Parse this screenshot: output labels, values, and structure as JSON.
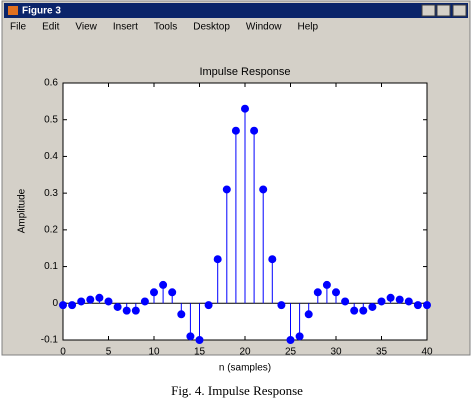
{
  "window": {
    "title": "Figure 3",
    "menu": [
      "File",
      "Edit",
      "View",
      "Insert",
      "Tools",
      "Desktop",
      "Window",
      "Help"
    ]
  },
  "chart_data": {
    "type": "stem",
    "title": "Impulse Response",
    "x_label": "n (samples)",
    "y_label": "Amplitude",
    "x": [
      0,
      1,
      2,
      3,
      4,
      5,
      6,
      7,
      8,
      9,
      10,
      11,
      12,
      13,
      14,
      15,
      16,
      17,
      18,
      19,
      20,
      21,
      22,
      23,
      24,
      25,
      26,
      27,
      28,
      29,
      30,
      31,
      32,
      33,
      34,
      35,
      36,
      37,
      38,
      39,
      40
    ],
    "values": [
      -0.005,
      -0.005,
      0.005,
      0.01,
      0.015,
      0.005,
      -0.01,
      -0.02,
      -0.02,
      0.005,
      0.03,
      0.05,
      0.03,
      -0.03,
      -0.09,
      -0.1,
      -0.005,
      0.12,
      0.31,
      0.47,
      0.53,
      0.47,
      0.31,
      0.12,
      -0.005,
      -0.1,
      -0.09,
      -0.03,
      0.03,
      0.05,
      0.03,
      0.005,
      -0.02,
      -0.02,
      -0.01,
      0.005,
      0.015,
      0.01,
      0.005,
      -0.005,
      -0.005
    ],
    "color": "#0000ff",
    "xlim": [
      0,
      40
    ],
    "xticks": [
      0,
      5,
      10,
      15,
      20,
      25,
      30,
      35,
      40
    ],
    "ylim": [
      -0.1,
      0.6
    ],
    "yticks": [
      -0.1,
      0,
      0.1,
      0.2,
      0.3,
      0.4,
      0.5,
      0.6
    ],
    "grid": false
  },
  "caption": "Fig. 4. Impulse Response"
}
